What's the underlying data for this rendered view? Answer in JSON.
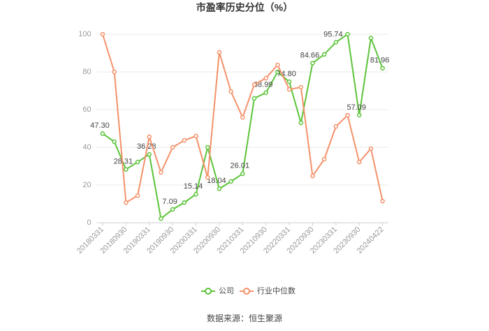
{
  "chart_data": {
    "type": "line",
    "title": "市盈率历史分位（%）",
    "categories": [
      "20180331",
      null,
      "20180930",
      null,
      "20190331",
      null,
      "20190930",
      null,
      "20200331",
      null,
      "20200930",
      null,
      "20210331",
      null,
      "20210930",
      null,
      "20220331",
      null,
      "20220930",
      null,
      "20230331",
      null,
      "20230930",
      null,
      "20240422"
    ],
    "series": [
      {
        "name": "公司",
        "color": "#5cc43a",
        "values": [
          47.3,
          43,
          28.31,
          32.2,
          36.28,
          2.2,
          7.09,
          10.7,
          15.14,
          40,
          18.04,
          21.9,
          26.01,
          66,
          68.99,
          80,
          74.8,
          53,
          84.66,
          89.3,
          95.74,
          100,
          57.09,
          98,
          81.96
        ],
        "value_labels": [
          "47.30",
          null,
          "28.31",
          null,
          "36.28",
          null,
          "7.09",
          null,
          "15.14",
          null,
          "18.04",
          null,
          "26.01",
          null,
          "68.99",
          null,
          "74.80",
          null,
          "84.66",
          null,
          "95.74",
          null,
          "57.09",
          null,
          "81.96"
        ]
      },
      {
        "name": "行业中位数",
        "color": "#f5916a",
        "values": [
          100,
          80,
          10.7,
          14.4,
          45.6,
          26.7,
          40,
          43.7,
          46,
          24,
          90.4,
          69.6,
          55.9,
          73.3,
          76.7,
          83.7,
          70.7,
          71.9,
          24.8,
          33.7,
          51.1,
          57,
          32.2,
          39.3,
          11.5
        ]
      }
    ],
    "ylim": [
      0,
      100
    ],
    "yticks": [
      0,
      20,
      40,
      60,
      80,
      100
    ],
    "grid": true,
    "source": "数据来源：恒生聚源"
  }
}
